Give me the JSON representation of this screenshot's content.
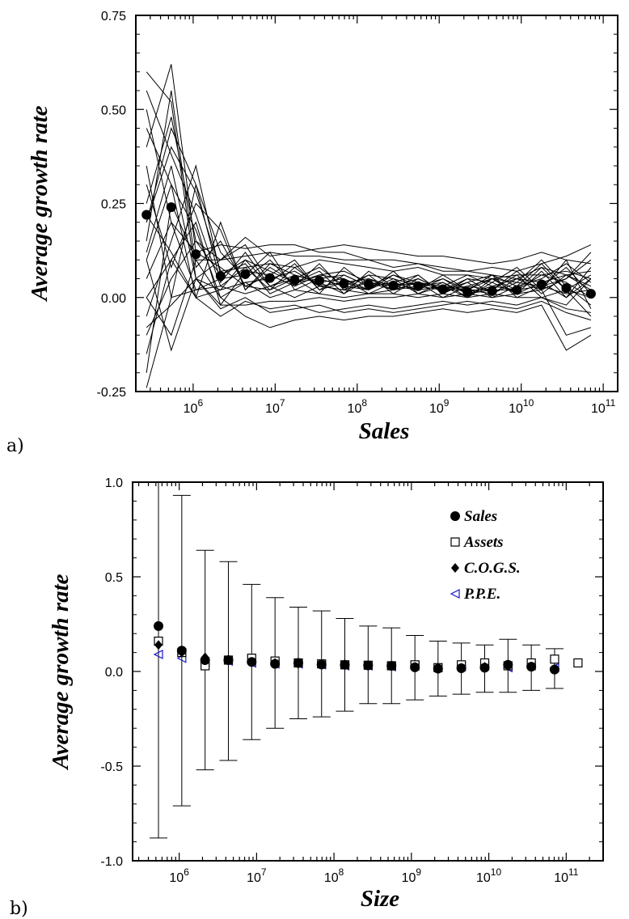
{
  "chart_data": [
    {
      "id": "panel-a",
      "panel_label": "a)",
      "type": "line",
      "xlabel": "Sales",
      "ylabel": "Average growth rate",
      "xscale": "log",
      "xlim": [
        200000,
        150000000000
      ],
      "ylim": [
        -0.25,
        0.75
      ],
      "yticks": [
        -0.25,
        0.0,
        0.25,
        0.5,
        0.75
      ],
      "ytick_labels": [
        "-0.25",
        "0.00",
        "0.25",
        "0.50",
        "0.75"
      ],
      "xticks": [
        1000000,
        10000000,
        100000000,
        1000000000,
        10000000000,
        100000000000
      ],
      "xtick_bases": [
        "10",
        "10",
        "10",
        "10",
        "10",
        "10"
      ],
      "xtick_exponents": [
        "6",
        "7",
        "8",
        "9",
        "10",
        "11"
      ],
      "grid": false,
      "bin_x": [
        270000,
        540000,
        1080000,
        2160000,
        4320000,
        8640000,
        17300000,
        34600000,
        69100000,
        138000000,
        276000000,
        553000000,
        1110000000,
        2210000000,
        4420000000,
        8850000000,
        17700000000,
        35400000000,
        70800000000
      ],
      "mean_series": {
        "marker": "filled-circle",
        "values": [
          0.22,
          0.24,
          0.115,
          0.057,
          0.062,
          0.052,
          0.046,
          0.045,
          0.037,
          0.035,
          0.032,
          0.03,
          0.022,
          0.015,
          0.017,
          0.02,
          0.035,
          0.025,
          0.01
        ]
      },
      "series": [
        {
          "values": [
            0.6,
            0.52,
            0.05,
            0.02,
            0.1,
            0.07,
            0.04,
            0.05,
            0.06,
            0.03,
            0.04,
            0.02,
            0.03,
            0.02,
            0.05,
            0.01,
            0.04,
            0.06,
            0.02
          ]
        },
        {
          "values": [
            0.4,
            0.62,
            0.12,
            0.08,
            0.03,
            0.06,
            0.1,
            0.02,
            0.04,
            0.05,
            0.02,
            0.04,
            0.0,
            0.03,
            0.02,
            0.06,
            0.0,
            -0.02,
            0.05
          ]
        },
        {
          "values": [
            0.55,
            0.38,
            0.22,
            0.03,
            0.08,
            0.02,
            0.05,
            0.08,
            0.03,
            0.02,
            0.06,
            0.03,
            0.05,
            0.01,
            0.03,
            0.02,
            0.08,
            0.02,
            -0.05
          ]
        },
        {
          "values": [
            0.2,
            0.45,
            0.3,
            0.12,
            0.05,
            0.1,
            0.03,
            0.06,
            0.07,
            0.04,
            0.03,
            0.05,
            0.02,
            0.04,
            0.0,
            0.03,
            0.05,
            0.09,
            0.04
          ]
        },
        {
          "values": [
            0.1,
            0.3,
            0.18,
            0.0,
            0.04,
            0.05,
            0.07,
            0.03,
            0.02,
            0.06,
            0.05,
            0.01,
            0.04,
            0.0,
            0.04,
            0.08,
            0.02,
            0.05,
            0.12
          ]
        },
        {
          "values": [
            -0.05,
            0.15,
            0.35,
            0.06,
            0.1,
            0.03,
            0.06,
            0.04,
            0.05,
            0.01,
            0.04,
            0.06,
            0.01,
            0.05,
            0.01,
            0.04,
            0.1,
            0.03,
            -0.02
          ]
        },
        {
          "values": [
            0.3,
            0.08,
            0.25,
            0.18,
            0.02,
            0.08,
            0.04,
            0.07,
            0.01,
            0.05,
            0.03,
            0.02,
            0.06,
            0.02,
            0.06,
            0.0,
            0.03,
            0.08,
            0.01
          ]
        },
        {
          "values": [
            -0.2,
            0.25,
            0.1,
            0.1,
            0.14,
            0.04,
            0.09,
            0.02,
            0.06,
            0.03,
            0.06,
            0.04,
            0.03,
            0.06,
            0.03,
            0.05,
            0.04,
            0.0,
            0.08
          ]
        },
        {
          "values": [
            0.5,
            0.2,
            0.02,
            0.05,
            0.06,
            0.12,
            0.02,
            0.05,
            0.03,
            0.06,
            0.01,
            0.05,
            0.02,
            0.03,
            0.05,
            0.02,
            0.06,
            0.04,
            0.0
          ]
        },
        {
          "values": [
            0.15,
            0.55,
            0.08,
            0.15,
            0.03,
            0.02,
            0.08,
            0.03,
            0.04,
            0.02,
            0.05,
            0.03,
            0.04,
            0.01,
            0.02,
            0.07,
            0.01,
            0.06,
            0.03
          ]
        },
        {
          "values": [
            0.0,
            0.1,
            0.2,
            -0.02,
            0.07,
            0.06,
            0.03,
            0.09,
            0.02,
            0.04,
            0.02,
            0.06,
            0.01,
            0.04,
            0.06,
            0.03,
            0.09,
            0.02,
            0.06
          ]
        },
        {
          "values": [
            0.35,
            0.0,
            0.3,
            0.04,
            0.12,
            0.03,
            0.05,
            0.01,
            0.08,
            0.03,
            0.04,
            0.02,
            0.05,
            0.02,
            0.01,
            0.05,
            0.02,
            0.1,
            -0.03
          ]
        },
        {
          "values": [
            0.45,
            0.3,
            0.0,
            0.2,
            0.02,
            0.09,
            0.06,
            0.04,
            0.01,
            0.07,
            0.03,
            0.04,
            0.02,
            0.05,
            0.04,
            0.01,
            0.07,
            0.0,
            0.05
          ]
        },
        {
          "values": [
            0.25,
            0.48,
            0.15,
            0.06,
            0.09,
            0.01,
            0.04,
            0.06,
            0.05,
            0.02,
            0.07,
            0.01,
            0.03,
            0.0,
            0.05,
            0.04,
            0.03,
            0.05,
            0.1
          ]
        },
        {
          "values": [
            0.12,
            0.35,
            0.05,
            0.1,
            0.16,
            0.11,
            0.12,
            0.13,
            0.14,
            0.13,
            0.12,
            0.11,
            0.11,
            0.1,
            0.09,
            0.1,
            0.12,
            0.1,
            0.09
          ]
        },
        {
          "values": [
            0.05,
            0.2,
            0.12,
            0.14,
            0.13,
            0.14,
            0.14,
            0.12,
            0.12,
            0.1,
            0.1,
            0.09,
            0.08,
            0.07,
            0.08,
            0.07,
            0.09,
            0.11,
            0.14
          ]
        },
        {
          "values": [
            -0.1,
            0.05,
            0.15,
            0.1,
            0.11,
            0.12,
            0.11,
            0.11,
            0.1,
            0.1,
            0.08,
            0.09,
            0.07,
            0.07,
            0.06,
            0.05,
            0.08,
            0.06,
            0.07
          ]
        },
        {
          "values": [
            0.2,
            0.4,
            0.28,
            0.07,
            0.08,
            0.09,
            0.08,
            0.1,
            0.09,
            0.08,
            0.07,
            0.08,
            0.06,
            0.06,
            0.05,
            0.06,
            0.06,
            0.07,
            0.05
          ]
        },
        {
          "values": [
            -0.15,
            0.1,
            0.0,
            -0.05,
            -0.01,
            -0.03,
            -0.02,
            -0.04,
            -0.03,
            -0.02,
            -0.03,
            -0.02,
            -0.01,
            -0.02,
            -0.01,
            -0.02,
            0.0,
            -0.03,
            -0.04
          ]
        },
        {
          "values": [
            -0.08,
            -0.02,
            0.05,
            -0.03,
            0.0,
            -0.04,
            -0.03,
            -0.02,
            -0.04,
            -0.03,
            -0.04,
            -0.03,
            -0.02,
            -0.01,
            -0.02,
            -0.03,
            -0.01,
            -0.04,
            -0.06
          ]
        },
        {
          "values": [
            0.0,
            -0.1,
            0.1,
            0.0,
            -0.05,
            -0.08,
            -0.06,
            -0.05,
            -0.06,
            -0.05,
            -0.05,
            -0.04,
            -0.03,
            -0.04,
            -0.03,
            -0.04,
            -0.02,
            -0.14,
            -0.1
          ]
        },
        {
          "values": [
            0.1,
            -0.14,
            0.05,
            -0.02,
            -0.02,
            -0.01,
            -0.01,
            0.0,
            -0.01,
            0.0,
            0.0,
            0.01,
            0.0,
            0.01,
            0.0,
            0.01,
            0.02,
            -0.1,
            -0.08
          ]
        },
        {
          "values": [
            0.22,
            0.12,
            0.0,
            0.02,
            0.04,
            0.0,
            0.02,
            0.01,
            0.0,
            0.01,
            0.01,
            0.0,
            0.01,
            0.0,
            0.01,
            0.0,
            0.0,
            0.02,
            0.0
          ]
        },
        {
          "values": [
            -0.24,
            0.0,
            0.02,
            0.03,
            0.01,
            0.03,
            0.0,
            0.03,
            0.02,
            0.01,
            0.02,
            0.03,
            0.02,
            0.02,
            0.02,
            0.02,
            0.03,
            0.01,
            0.02
          ]
        }
      ]
    },
    {
      "id": "panel-b",
      "panel_label": "b)",
      "type": "scatter",
      "xlabel": "Size",
      "ylabel": "Average growth rate",
      "xscale": "log",
      "xlim": [
        250000,
        300000000000
      ],
      "ylim": [
        -1.0,
        1.0
      ],
      "yticks": [
        -1.0,
        -0.5,
        0.0,
        0.5,
        1.0
      ],
      "ytick_labels": [
        "-1.0",
        "-0.5",
        "0.0",
        "0.5",
        "1.0"
      ],
      "xticks": [
        1000000,
        10000000,
        100000000,
        1000000000,
        10000000000,
        100000000000
      ],
      "xtick_bases": [
        "10",
        "10",
        "10",
        "10",
        "10",
        "10"
      ],
      "xtick_exponents": [
        "6",
        "7",
        "8",
        "9",
        "10",
        "11"
      ],
      "grid": false,
      "legend_position": "top-right",
      "x": [
        540000,
        1080000,
        2160000,
        4320000,
        8640000,
        17300000,
        34600000,
        69100000,
        138000000,
        276000000,
        553000000,
        1110000000,
        2210000000,
        4420000000,
        8850000000,
        17700000000,
        35400000000,
        70800000000,
        142000000000
      ],
      "error_bars": {
        "upper": [
          1.05,
          0.93,
          0.64,
          0.58,
          0.46,
          0.39,
          0.34,
          0.32,
          0.28,
          0.24,
          0.23,
          0.19,
          0.16,
          0.15,
          0.14,
          0.17,
          0.14,
          0.12,
          null
        ],
        "lower": [
          -0.88,
          -0.71,
          -0.52,
          -0.47,
          -0.36,
          -0.3,
          -0.25,
          -0.24,
          -0.21,
          -0.17,
          -0.17,
          -0.15,
          -0.13,
          -0.12,
          -0.11,
          -0.11,
          -0.1,
          -0.09,
          null
        ]
      },
      "series": [
        {
          "name": "Sales",
          "marker": "filled-circle",
          "color": "#000000",
          "values": [
            0.24,
            0.11,
            0.06,
            0.06,
            0.05,
            0.04,
            0.045,
            0.037,
            0.035,
            0.032,
            0.03,
            0.022,
            0.015,
            0.017,
            0.02,
            0.035,
            0.025,
            0.01,
            null
          ]
        },
        {
          "name": "Assets",
          "marker": "open-square",
          "color": "#000000",
          "values": [
            0.16,
            0.1,
            0.03,
            0.06,
            0.07,
            0.055,
            0.045,
            0.04,
            0.035,
            0.033,
            0.03,
            0.035,
            0.02,
            0.035,
            0.045,
            0.03,
            0.045,
            0.065,
            0.045
          ]
        },
        {
          "name": "C.O.G.S.",
          "marker": "filled-diamond",
          "color": "#000000",
          "values": [
            0.14,
            0.1,
            0.075,
            0.06,
            0.05,
            0.045,
            0.04,
            0.035,
            0.033,
            0.03,
            0.028,
            0.025,
            0.02,
            0.02,
            0.025,
            0.03,
            0.025,
            0.015,
            null
          ]
        },
        {
          "name": "P.P.E.",
          "marker": "open-triangle-left",
          "color": "#1a1acc",
          "values": [
            0.09,
            0.07,
            0.05,
            0.055,
            0.045,
            0.04,
            0.04,
            0.035,
            0.03,
            0.03,
            0.025,
            0.03,
            0.02,
            0.025,
            0.03,
            0.02,
            0.03,
            0.02,
            null
          ]
        }
      ]
    }
  ]
}
